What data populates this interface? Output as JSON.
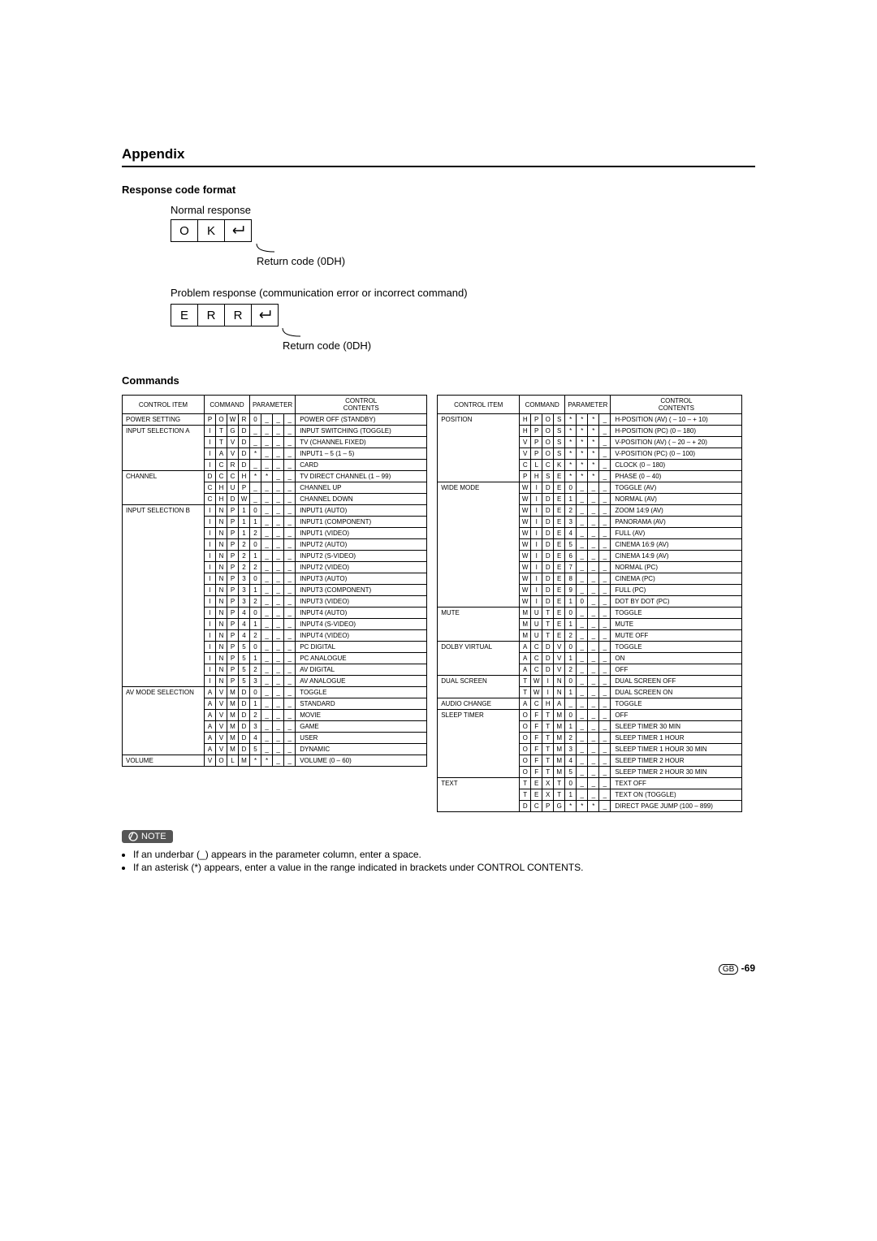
{
  "page": {
    "title": "Appendix",
    "response_heading": "Response code format",
    "normal_label": "Normal response",
    "normal_chars": [
      "O",
      "K"
    ],
    "return_code_label": "Return code (0DH)",
    "problem_label": "Problem response (communication error or incorrect command)",
    "problem_chars": [
      "E",
      "R",
      "R"
    ],
    "commands_heading": "Commands",
    "headers": {
      "item": "CONTROL ITEM",
      "command": "COMMAND",
      "parameter": "PARAMETER",
      "contents": "CONTROL\nCONTENTS"
    },
    "note_label": "NOTE",
    "notes": [
      "If an underbar (_) appears in the parameter column, enter a space.",
      "If an asterisk (*) appears, enter a value in the range indicated in brackets under CONTROL CONTENTS."
    ],
    "page_number_prefix": "GB",
    "page_number": "-69"
  },
  "left": [
    {
      "item": "POWER SETTING",
      "rowspan": 1,
      "cmd": [
        "P",
        "O",
        "W",
        "R"
      ],
      "par": [
        "0",
        "_",
        "_",
        "_"
      ],
      "contents": "POWER OFF (STANDBY)"
    },
    {
      "item": "INPUT SELECTION A",
      "rowspan": 4,
      "cmd": [
        "I",
        "T",
        "G",
        "D"
      ],
      "par": [
        "_",
        "_",
        "_",
        "_"
      ],
      "contents": "INPUT SWITCHING (TOGGLE)"
    },
    {
      "cmd": [
        "I",
        "T",
        "V",
        "D"
      ],
      "par": [
        "_",
        "_",
        "_",
        "_"
      ],
      "contents": "TV (CHANNEL FIXED)"
    },
    {
      "cmd": [
        "I",
        "A",
        "V",
        "D"
      ],
      "par": [
        "*",
        "_",
        "_",
        "_"
      ],
      "contents": "INPUT1 – 5 (1 – 5)"
    },
    {
      "cmd": [
        "I",
        "C",
        "R",
        "D"
      ],
      "par": [
        "_",
        "_",
        "_",
        "_"
      ],
      "contents": "CARD"
    },
    {
      "item": "CHANNEL",
      "rowspan": 3,
      "cmd": [
        "D",
        "C",
        "C",
        "H"
      ],
      "par": [
        "*",
        "*",
        "_",
        "_"
      ],
      "contents": "TV DIRECT CHANNEL (1 – 99)"
    },
    {
      "cmd": [
        "C",
        "H",
        "U",
        "P"
      ],
      "par": [
        "_",
        "_",
        "_",
        "_"
      ],
      "contents": "CHANNEL UP"
    },
    {
      "cmd": [
        "C",
        "H",
        "D",
        "W"
      ],
      "par": [
        "_",
        "_",
        "_",
        "_"
      ],
      "contents": "CHANNEL DOWN"
    },
    {
      "item": "INPUT SELECTION B",
      "rowspan": 16,
      "cmd": [
        "I",
        "N",
        "P"
      ],
      "par": [
        "1",
        "0",
        "_",
        "_",
        "_"
      ],
      "contents": "INPUT1 (AUTO)"
    },
    {
      "cmd": [
        "I",
        "N",
        "P"
      ],
      "par": [
        "1",
        "1",
        "_",
        "_",
        "_"
      ],
      "contents": "INPUT1 (COMPONENT)"
    },
    {
      "cmd": [
        "I",
        "N",
        "P"
      ],
      "par": [
        "1",
        "2",
        "_",
        "_",
        "_"
      ],
      "contents": "INPUT1 (VIDEO)"
    },
    {
      "cmd": [
        "I",
        "N",
        "P"
      ],
      "par": [
        "2",
        "0",
        "_",
        "_",
        "_"
      ],
      "contents": "INPUT2 (AUTO)"
    },
    {
      "cmd": [
        "I",
        "N",
        "P"
      ],
      "par": [
        "2",
        "1",
        "_",
        "_",
        "_"
      ],
      "contents": "INPUT2 (S-VIDEO)"
    },
    {
      "cmd": [
        "I",
        "N",
        "P"
      ],
      "par": [
        "2",
        "2",
        "_",
        "_",
        "_"
      ],
      "contents": "INPUT2 (VIDEO)"
    },
    {
      "cmd": [
        "I",
        "N",
        "P"
      ],
      "par": [
        "3",
        "0",
        "_",
        "_",
        "_"
      ],
      "contents": "INPUT3 (AUTO)"
    },
    {
      "cmd": [
        "I",
        "N",
        "P"
      ],
      "par": [
        "3",
        "1",
        "_",
        "_",
        "_"
      ],
      "contents": "INPUT3 (COMPONENT)"
    },
    {
      "cmd": [
        "I",
        "N",
        "P"
      ],
      "par": [
        "3",
        "2",
        "_",
        "_",
        "_"
      ],
      "contents": "INPUT3 (VIDEO)"
    },
    {
      "cmd": [
        "I",
        "N",
        "P"
      ],
      "par": [
        "4",
        "0",
        "_",
        "_",
        "_"
      ],
      "contents": "INPUT4 (AUTO)"
    },
    {
      "cmd": [
        "I",
        "N",
        "P"
      ],
      "par": [
        "4",
        "1",
        "_",
        "_",
        "_"
      ],
      "contents": "INPUT4 (S-VIDEO)"
    },
    {
      "cmd": [
        "I",
        "N",
        "P"
      ],
      "par": [
        "4",
        "2",
        "_",
        "_",
        "_"
      ],
      "contents": "INPUT4 (VIDEO)"
    },
    {
      "cmd": [
        "I",
        "N",
        "P"
      ],
      "par": [
        "5",
        "0",
        "_",
        "_",
        "_"
      ],
      "contents": "PC DIGITAL"
    },
    {
      "cmd": [
        "I",
        "N",
        "P"
      ],
      "par": [
        "5",
        "1",
        "_",
        "_",
        "_"
      ],
      "contents": "PC ANALOGUE"
    },
    {
      "cmd": [
        "I",
        "N",
        "P"
      ],
      "par": [
        "5",
        "2",
        "_",
        "_",
        "_"
      ],
      "contents": "AV DIGITAL"
    },
    {
      "cmd": [
        "I",
        "N",
        "P"
      ],
      "par": [
        "5",
        "3",
        "_",
        "_",
        "_"
      ],
      "contents": "AV ANALOGUE"
    },
    {
      "item": "AV MODE SELECTION",
      "rowspan": 6,
      "cmd": [
        "A",
        "V",
        "M",
        "D"
      ],
      "par": [
        "0",
        "_",
        "_",
        "_"
      ],
      "contents": "TOGGLE"
    },
    {
      "cmd": [
        "A",
        "V",
        "M",
        "D"
      ],
      "par": [
        "1",
        "_",
        "_",
        "_"
      ],
      "contents": "STANDARD"
    },
    {
      "cmd": [
        "A",
        "V",
        "M",
        "D"
      ],
      "par": [
        "2",
        "_",
        "_",
        "_"
      ],
      "contents": "MOVIE"
    },
    {
      "cmd": [
        "A",
        "V",
        "M",
        "D"
      ],
      "par": [
        "3",
        "_",
        "_",
        "_"
      ],
      "contents": "GAME"
    },
    {
      "cmd": [
        "A",
        "V",
        "M",
        "D"
      ],
      "par": [
        "4",
        "_",
        "_",
        "_"
      ],
      "contents": "USER"
    },
    {
      "cmd": [
        "A",
        "V",
        "M",
        "D"
      ],
      "par": [
        "5",
        "_",
        "_",
        "_"
      ],
      "contents": "DYNAMIC"
    },
    {
      "item": "VOLUME",
      "rowspan": 1,
      "cmd": [
        "V",
        "O",
        "L",
        "M"
      ],
      "par": [
        "*",
        "*",
        "_",
        "_"
      ],
      "contents": "VOLUME (0 – 60)"
    }
  ],
  "right": [
    {
      "item": "POSITION",
      "rowspan": 6,
      "cmd": [
        "H",
        "P",
        "O",
        "S"
      ],
      "par": [
        "*",
        "*",
        "*",
        "_"
      ],
      "contents": "H-POSITION (AV) ( – 10 –  + 10)"
    },
    {
      "cmd": [
        "H",
        "P",
        "O",
        "S"
      ],
      "par": [
        "*",
        "*",
        "*",
        "_"
      ],
      "contents": "H-POSITION (PC) (0 – 180)"
    },
    {
      "cmd": [
        "V",
        "P",
        "O",
        "S"
      ],
      "par": [
        "*",
        "*",
        "*",
        "_"
      ],
      "contents": "V-POSITION (AV) ( – 20 –  + 20)"
    },
    {
      "cmd": [
        "V",
        "P",
        "O",
        "S"
      ],
      "par": [
        "*",
        "*",
        "*",
        "_"
      ],
      "contents": "V-POSITION (PC) (0 – 100)"
    },
    {
      "cmd": [
        "C",
        "L",
        "C",
        "K"
      ],
      "par": [
        "*",
        "*",
        "*",
        "_"
      ],
      "contents": "CLOCK (0 – 180)"
    },
    {
      "cmd": [
        "P",
        "H",
        "S",
        "E"
      ],
      "par": [
        "*",
        "*",
        "*",
        "_"
      ],
      "contents": "PHASE (0 – 40)"
    },
    {
      "item": "WIDE MODE",
      "rowspan": 11,
      "cmd": [
        "W",
        "I",
        "D",
        "E"
      ],
      "par": [
        "0",
        "_",
        "_",
        "_"
      ],
      "contents": "TOGGLE (AV)"
    },
    {
      "cmd": [
        "W",
        "I",
        "D",
        "E"
      ],
      "par": [
        "1",
        "_",
        "_",
        "_"
      ],
      "contents": "NORMAL (AV)"
    },
    {
      "cmd": [
        "W",
        "I",
        "D",
        "E"
      ],
      "par": [
        "2",
        "_",
        "_",
        "_"
      ],
      "contents": "ZOOM 14:9 (AV)"
    },
    {
      "cmd": [
        "W",
        "I",
        "D",
        "E"
      ],
      "par": [
        "3",
        "_",
        "_",
        "_"
      ],
      "contents": "PANORAMA (AV)"
    },
    {
      "cmd": [
        "W",
        "I",
        "D",
        "E"
      ],
      "par": [
        "4",
        "_",
        "_",
        "_"
      ],
      "contents": "FULL (AV)"
    },
    {
      "cmd": [
        "W",
        "I",
        "D",
        "E"
      ],
      "par": [
        "5",
        "_",
        "_",
        "_"
      ],
      "contents": "CINEMA 16:9 (AV)"
    },
    {
      "cmd": [
        "W",
        "I",
        "D",
        "E"
      ],
      "par": [
        "6",
        "_",
        "_",
        "_"
      ],
      "contents": "CINEMA 14:9 (AV)"
    },
    {
      "cmd": [
        "W",
        "I",
        "D",
        "E"
      ],
      "par": [
        "7",
        "_",
        "_",
        "_"
      ],
      "contents": "NORMAL (PC)"
    },
    {
      "cmd": [
        "W",
        "I",
        "D",
        "E"
      ],
      "par": [
        "8",
        "_",
        "_",
        "_"
      ],
      "contents": "CINEMA (PC)"
    },
    {
      "cmd": [
        "W",
        "I",
        "D",
        "E"
      ],
      "par": [
        "9",
        "_",
        "_",
        "_"
      ],
      "contents": "FULL (PC)"
    },
    {
      "cmd": [
        "W",
        "I",
        "D",
        "E"
      ],
      "par": [
        "1",
        "0",
        "_",
        "_"
      ],
      "contents": "DOT BY DOT (PC)"
    },
    {
      "item": "MUTE",
      "rowspan": 3,
      "cmd": [
        "M",
        "U",
        "T",
        "E"
      ],
      "par": [
        "0",
        "_",
        "_",
        "_"
      ],
      "contents": "TOGGLE"
    },
    {
      "cmd": [
        "M",
        "U",
        "T",
        "E"
      ],
      "par": [
        "1",
        "_",
        "_",
        "_"
      ],
      "contents": "MUTE"
    },
    {
      "cmd": [
        "M",
        "U",
        "T",
        "E"
      ],
      "par": [
        "2",
        "_",
        "_",
        "_"
      ],
      "contents": "MUTE OFF"
    },
    {
      "item": "DOLBY VIRTUAL",
      "rowspan": 3,
      "cmd": [
        "A",
        "C",
        "D",
        "V"
      ],
      "par": [
        "0",
        "_",
        "_",
        "_"
      ],
      "contents": "TOGGLE"
    },
    {
      "cmd": [
        "A",
        "C",
        "D",
        "V"
      ],
      "par": [
        "1",
        "_",
        "_",
        "_"
      ],
      "contents": "ON"
    },
    {
      "cmd": [
        "A",
        "C",
        "D",
        "V"
      ],
      "par": [
        "2",
        "_",
        "_",
        "_"
      ],
      "contents": "OFF"
    },
    {
      "item": "DUAL SCREEN",
      "rowspan": 2,
      "cmd": [
        "T",
        "W",
        "I",
        "N"
      ],
      "par": [
        "0",
        "_",
        "_",
        "_"
      ],
      "contents": "DUAL SCREEN OFF"
    },
    {
      "cmd": [
        "T",
        "W",
        "I",
        "N"
      ],
      "par": [
        "1",
        "_",
        "_",
        "_"
      ],
      "contents": "DUAL SCREEN ON"
    },
    {
      "item": "AUDIO CHANGE",
      "rowspan": 1,
      "cmd": [
        "A",
        "C",
        "H",
        "A"
      ],
      "par": [
        "_",
        "_",
        "_",
        "_"
      ],
      "contents": "TOGGLE"
    },
    {
      "item": "SLEEP TIMER",
      "rowspan": 6,
      "cmd": [
        "O",
        "F",
        "T",
        "M"
      ],
      "par": [
        "0",
        "_",
        "_",
        "_"
      ],
      "contents": "OFF"
    },
    {
      "cmd": [
        "O",
        "F",
        "T",
        "M"
      ],
      "par": [
        "1",
        "_",
        "_",
        "_"
      ],
      "contents": "SLEEP TIMER 30 MIN"
    },
    {
      "cmd": [
        "O",
        "F",
        "T",
        "M"
      ],
      "par": [
        "2",
        "_",
        "_",
        "_"
      ],
      "contents": "SLEEP TIMER 1 HOUR"
    },
    {
      "cmd": [
        "O",
        "F",
        "T",
        "M"
      ],
      "par": [
        "3",
        "_",
        "_",
        "_"
      ],
      "contents": "SLEEP TIMER 1 HOUR 30 MIN"
    },
    {
      "cmd": [
        "O",
        "F",
        "T",
        "M"
      ],
      "par": [
        "4",
        "_",
        "_",
        "_"
      ],
      "contents": "SLEEP TIMER 2 HOUR"
    },
    {
      "cmd": [
        "O",
        "F",
        "T",
        "M"
      ],
      "par": [
        "5",
        "_",
        "_",
        "_"
      ],
      "contents": "SLEEP TIMER 2 HOUR 30 MIN"
    },
    {
      "item": "TEXT",
      "rowspan": 3,
      "cmd": [
        "T",
        "E",
        "X",
        "T"
      ],
      "par": [
        "0",
        "_",
        "_",
        "_"
      ],
      "contents": "TEXT OFF"
    },
    {
      "cmd": [
        "T",
        "E",
        "X",
        "T"
      ],
      "par": [
        "1",
        "_",
        "_",
        "_"
      ],
      "contents": "TEXT ON (TOGGLE)"
    },
    {
      "cmd": [
        "D",
        "C",
        "P",
        "G"
      ],
      "par": [
        "*",
        "*",
        "*",
        "_"
      ],
      "contents": "DIRECT PAGE JUMP (100 – 899)"
    }
  ]
}
